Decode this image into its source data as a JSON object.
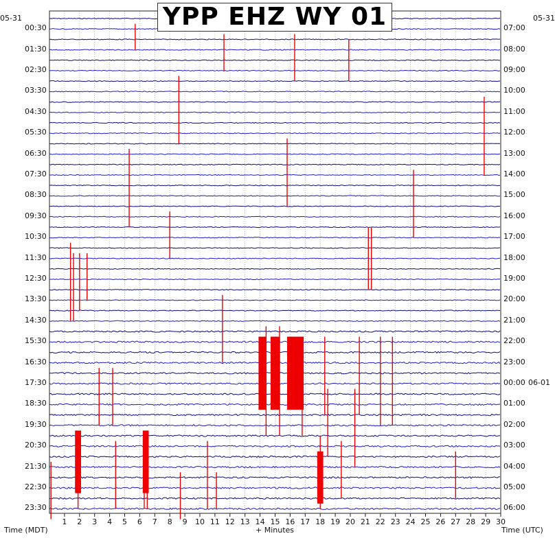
{
  "chart_data": {
    "type": "line",
    "title": "YPP EHZ WY 01",
    "start_date_left": "05-31",
    "start_date_right": "05-31",
    "next_date_right": "06-01",
    "xlabel": "+ Minutes",
    "left_axis_caption": "Time (MDT)",
    "right_axis_caption": "Time (UTC)",
    "x_ticks": [
      "1",
      "2",
      "3",
      "4",
      "5",
      "6",
      "7",
      "8",
      "9",
      "10",
      "11",
      "12",
      "13",
      "14",
      "15",
      "16",
      "17",
      "18",
      "19",
      "20",
      "21",
      "22",
      "23",
      "24",
      "25",
      "26",
      "27",
      "28",
      "29",
      "30"
    ],
    "xlim": [
      0,
      30
    ],
    "left_labels": [
      "00:30",
      "01:30",
      "02:30",
      "03:30",
      "04:30",
      "05:30",
      "06:30",
      "07:30",
      "08:30",
      "09:30",
      "10:30",
      "11:30",
      "12:30",
      "13:30",
      "14:30",
      "15:30",
      "16:30",
      "17:30",
      "18:30",
      "19:30",
      "20:30",
      "21:30",
      "22:30",
      "23:30"
    ],
    "right_labels": [
      "07:00",
      "08:00",
      "09:00",
      "10:00",
      "11:00",
      "12:00",
      "13:00",
      "14:00",
      "15:00",
      "16:00",
      "17:00",
      "18:00",
      "19:00",
      "20:00",
      "21:00",
      "22:00",
      "23:00",
      "00:00",
      "01:00",
      "02:00",
      "03:00",
      "04:00",
      "05:00",
      "06:00"
    ],
    "trace_count": 48,
    "colors": {
      "trace_a": "#0a0a80",
      "trace_b": "#1a1acc",
      "clip": "#ee0000",
      "grid": "#999999"
    },
    "clipped_events": [
      {
        "trace": 1,
        "minute": 5.7,
        "up": 1,
        "down": 2
      },
      {
        "trace": 2,
        "minute": 11.6,
        "up": 1,
        "down": 3
      },
      {
        "trace": 2,
        "minute": 16.3,
        "up": 1,
        "down": 4
      },
      {
        "trace": 3,
        "minute": 19.9,
        "up": 2,
        "down": 3
      },
      {
        "trace": 6,
        "minute": 8.6,
        "up": 1,
        "down": 6
      },
      {
        "trace": 8,
        "minute": 28.9,
        "up": 1,
        "down": 7
      },
      {
        "trace": 12,
        "minute": 15.8,
        "up": 1,
        "down": 6
      },
      {
        "trace": 13,
        "minute": 5.3,
        "up": 1,
        "down": 7
      },
      {
        "trace": 15,
        "minute": 24.2,
        "up": 1,
        "down": 6
      },
      {
        "trace": 19,
        "minute": 8.0,
        "up": 1,
        "down": 4
      },
      {
        "trace": 21,
        "minute": 21.2,
        "up": 2,
        "down": 5
      },
      {
        "trace": 21,
        "minute": 21.4,
        "up": 2,
        "down": 5
      },
      {
        "trace": 22,
        "minute": 1.4,
        "up": 1,
        "down": 7
      },
      {
        "trace": 23,
        "minute": 1.6,
        "up": 1,
        "down": 6
      },
      {
        "trace": 23,
        "minute": 2.0,
        "up": 1,
        "down": 5
      },
      {
        "trace": 23,
        "minute": 2.5,
        "up": 1,
        "down": 4
      },
      {
        "trace": 27,
        "minute": 11.5,
        "up": 1,
        "down": 6
      },
      {
        "trace": 30,
        "minute": 14.4,
        "up": 1,
        "down": 10
      },
      {
        "trace": 30,
        "minute": 15.3,
        "up": 1,
        "down": 10
      },
      {
        "trace": 31,
        "minute": 16.8,
        "up": 1,
        "down": 9
      },
      {
        "trace": 31,
        "minute": 18.3,
        "up": 1,
        "down": 7
      },
      {
        "trace": 31,
        "minute": 20.6,
        "up": 1,
        "down": 7
      },
      {
        "trace": 31,
        "minute": 22.0,
        "up": 1,
        "down": 8
      },
      {
        "trace": 31,
        "minute": 22.8,
        "up": 1,
        "down": 8
      },
      {
        "trace": 34,
        "minute": 3.3,
        "up": 1,
        "down": 5
      },
      {
        "trace": 34,
        "minute": 4.2,
        "up": 1,
        "down": 5
      },
      {
        "trace": 36,
        "minute": 18.5,
        "up": 1,
        "down": 6
      },
      {
        "trace": 36,
        "minute": 20.3,
        "up": 1,
        "down": 7
      },
      {
        "trace": 41,
        "minute": 1.9,
        "up": 1,
        "down": 6
      },
      {
        "trace": 41,
        "minute": 4.4,
        "up": 1,
        "down": 6
      },
      {
        "trace": 41,
        "minute": 6.3,
        "up": 1,
        "down": 6
      },
      {
        "trace": 41,
        "minute": 6.5,
        "up": 1,
        "down": 6
      },
      {
        "trace": 41,
        "minute": 10.5,
        "up": 1,
        "down": 6
      },
      {
        "trace": 41,
        "minute": 18.0,
        "up": 2,
        "down": 6
      },
      {
        "trace": 41,
        "minute": 19.4,
        "up": 1,
        "down": 5
      },
      {
        "trace": 42,
        "minute": 27.0,
        "up": 1,
        "down": 4
      },
      {
        "trace": 43,
        "minute": 0.1,
        "up": 1,
        "down": 5
      },
      {
        "trace": 44,
        "minute": 8.7,
        "up": 1,
        "down": 4
      },
      {
        "trace": 44,
        "minute": 11.1,
        "up": 1,
        "down": 3
      }
    ],
    "clipped_blocks": [
      {
        "trace": 31,
        "from": 13.9,
        "to": 14.4,
        "rows": 7
      },
      {
        "trace": 31,
        "from": 14.7,
        "to": 15.3,
        "rows": 7
      },
      {
        "trace": 31,
        "from": 15.8,
        "to": 16.9,
        "rows": 7
      },
      {
        "trace": 40,
        "from": 1.7,
        "to": 2.1,
        "rows": 6
      },
      {
        "trace": 40,
        "from": 6.2,
        "to": 6.6,
        "rows": 6
      },
      {
        "trace": 42,
        "from": 17.8,
        "to": 18.2,
        "rows": 5
      }
    ]
  }
}
